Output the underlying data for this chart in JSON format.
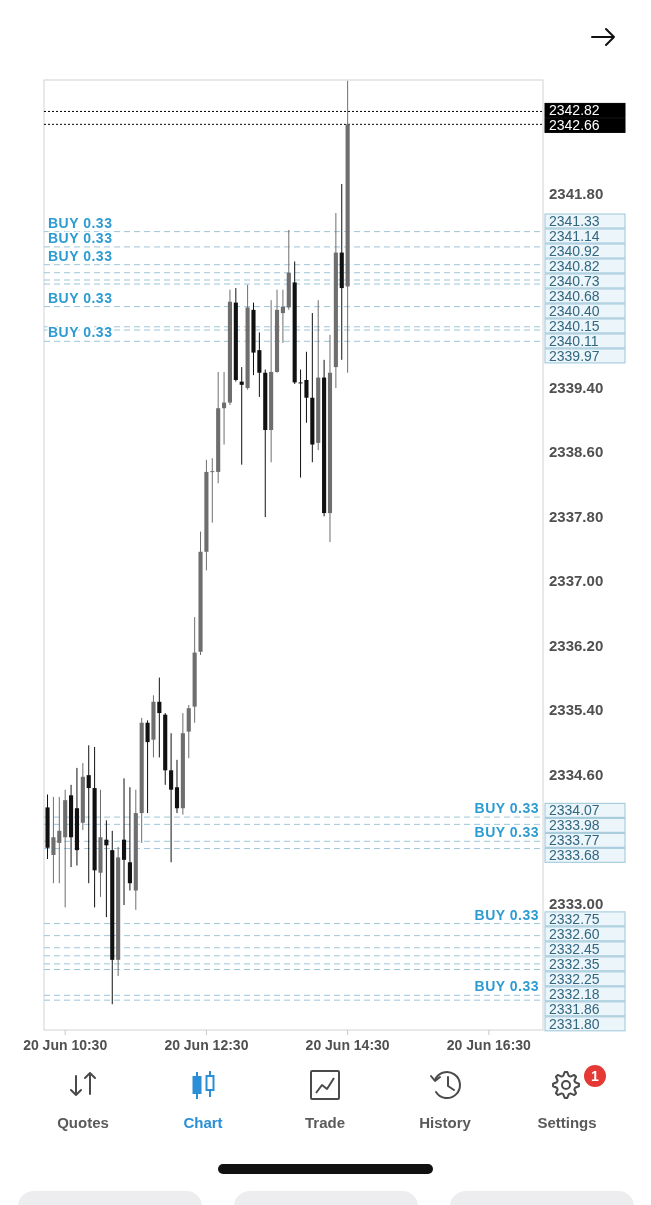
{
  "chart_data": {
    "type": "candlestick",
    "x": [
      "--06-20T10:15",
      "--06-20T10:20",
      "--06-20T10:25",
      "--06-20T10:30",
      "--06-20T10:35",
      "--06-20T10:40",
      "--06-20T10:45",
      "--06-20T10:50",
      "--06-20T10:55",
      "--06-20T11:00",
      "--06-20T11:05",
      "--06-20T11:10",
      "--06-20T11:15",
      "--06-20T11:20",
      "--06-20T11:25",
      "--06-20T11:30",
      "--06-20T11:35",
      "--06-20T11:40",
      "--06-20T11:45",
      "--06-20T11:50",
      "--06-20T11:55",
      "--06-20T12:00",
      "--06-20T12:05",
      "--06-20T12:10",
      "--06-20T12:15",
      "--06-20T12:20",
      "--06-20T12:25",
      "--06-20T12:30",
      "--06-20T12:35",
      "--06-20T12:40",
      "--06-20T12:45",
      "--06-20T12:50",
      "--06-20T12:55",
      "--06-20T13:00",
      "--06-20T13:05",
      "--06-20T13:10",
      "--06-20T13:15",
      "--06-20T13:20",
      "--06-20T13:25",
      "--06-20T13:30",
      "--06-20T13:35",
      "--06-20T13:40",
      "--06-20T13:45",
      "--06-20T13:50",
      "--06-20T13:55",
      "--06-20T14:00",
      "--06-20T14:05",
      "--06-20T14:10",
      "--06-20T14:15",
      "--06-20T14:20",
      "--06-20T14:25",
      "--06-20T14:30"
    ],
    "ohlc": [
      [
        2334.19,
        2334.35,
        2333.55,
        2333.69
      ],
      [
        2333.6,
        2334.32,
        2333.25,
        2333.82
      ],
      [
        2333.75,
        2334.32,
        2333.25,
        2333.9
      ],
      [
        2333.82,
        2334.41,
        2332.95,
        2334.28
      ],
      [
        2334.34,
        2334.47,
        2333.45,
        2333.82
      ],
      [
        2334.18,
        2334.68,
        2333.47,
        2333.66
      ],
      [
        2334,
        2334.74,
        2333.91,
        2334.57
      ],
      [
        2334.59,
        2334.96,
        2333.25,
        2334.43
      ],
      [
        2334.43,
        2334.94,
        2332.95,
        2333.41
      ],
      [
        2333.38,
        2334.41,
        2333.08,
        2333.82
      ],
      [
        2333.79,
        2334.03,
        2332.83,
        2333.72
      ],
      [
        2333.66,
        2333.9,
        2331.75,
        2332.3
      ],
      [
        2332.3,
        2333.7,
        2332.1,
        2333.57
      ],
      [
        2333.79,
        2334.55,
        2332.98,
        2333.54
      ],
      [
        2333.51,
        2334.44,
        2333.16,
        2333.25
      ],
      [
        2333.16,
        2334.41,
        2332.92,
        2334.12
      ],
      [
        2334.12,
        2335.3,
        2333.75,
        2335.24
      ],
      [
        2335.24,
        2335.27,
        2334.12,
        2335
      ],
      [
        2335.03,
        2335.58,
        2334.81,
        2335.5
      ],
      [
        2335.5,
        2335.8,
        2334.81,
        2335.36
      ],
      [
        2335.34,
        2335.36,
        2334.47,
        2334.65
      ],
      [
        2334.65,
        2335.11,
        2333.51,
        2334.41
      ],
      [
        2334.44,
        2334.78,
        2334.12,
        2334.18
      ],
      [
        2334.18,
        2335.36,
        2334.1,
        2335.11
      ],
      [
        2335.13,
        2335.46,
        2334.8,
        2335.42
      ],
      [
        2335.44,
        2336.55,
        2335.24,
        2336.11
      ],
      [
        2336.12,
        2337.61,
        2336.08,
        2337.36
      ],
      [
        2337.36,
        2338.5,
        2337.13,
        2338.35
      ],
      [
        2338.35,
        2338.52,
        2337.72,
        2338.36
      ],
      [
        2338.35,
        2339.59,
        2338.21,
        2339.14
      ],
      [
        2339.14,
        2339.59,
        2338.69,
        2339.21
      ],
      [
        2339.21,
        2340.61,
        2339.18,
        2340.46
      ],
      [
        2340.45,
        2340.63,
        2339.47,
        2339.49
      ],
      [
        2339.47,
        2339.65,
        2338.44,
        2339.43
      ],
      [
        2339.39,
        2340.67,
        2339.37,
        2340.39
      ],
      [
        2340.36,
        2340.45,
        2339.55,
        2339.83
      ],
      [
        2339.86,
        2340.08,
        2339.28,
        2339.58
      ],
      [
        2339.58,
        2339.62,
        2337.79,
        2338.87
      ],
      [
        2338.87,
        2340.48,
        2338.47,
        2339.59
      ],
      [
        2339.59,
        2340.61,
        2339.58,
        2340.36
      ],
      [
        2340.32,
        2340.61,
        2339.95,
        2340.4
      ],
      [
        2340.39,
        2341.35,
        2340.36,
        2340.82
      ],
      [
        2340.7,
        2340.96,
        2339.44,
        2339.46
      ],
      [
        2339.46,
        2339.62,
        2338.28,
        2339.45
      ],
      [
        2339.49,
        2339.84,
        2338.96,
        2339.27
      ],
      [
        2339.27,
        2340.32,
        2338.47,
        2338.69
      ],
      [
        2338.71,
        2340.48,
        2338.62,
        2339.52
      ],
      [
        2339.52,
        2339.74,
        2337.8,
        2337.84
      ],
      [
        2337.84,
        2340.05,
        2337.48,
        2339.58
      ],
      [
        2339.65,
        2341.56,
        2339.39,
        2341.07
      ],
      [
        2341.07,
        2341.92,
        2339.74,
        2340.63
      ],
      [
        2340.65,
        2343.2,
        2339.58,
        2342.66
      ]
    ],
    "colors": [
      "#111111",
      "#6e6e6e",
      "#6e6e6e",
      "#6e6e6e",
      "#111111",
      "#111111",
      "#6e6e6e",
      "#111111",
      "#111111",
      "#6e6e6e",
      "#111111",
      "#111111",
      "#6e6e6e",
      "#111111",
      "#111111",
      "#6e6e6e",
      "#6e6e6e",
      "#111111",
      "#6e6e6e",
      "#111111",
      "#111111",
      "#111111",
      "#111111",
      "#6e6e6e",
      "#6e6e6e",
      "#6e6e6e",
      "#6e6e6e",
      "#6e6e6e",
      "#6e6e6e",
      "#6e6e6e",
      "#6e6e6e",
      "#6e6e6e",
      "#111111",
      "#111111",
      "#6e6e6e",
      "#111111",
      "#111111",
      "#111111",
      "#6e6e6e",
      "#6e6e6e",
      "#6e6e6e",
      "#6e6e6e",
      "#111111",
      "#111111",
      "#111111",
      "#111111",
      "#6e6e6e",
      "#111111",
      "#6e6e6e",
      "#6e6e6e",
      "#111111",
      "#6e6e6e"
    ],
    "xlim": [
      "--06-20T10:12",
      "--06-20T17:16"
    ],
    "xticks": [
      {
        "value": "--06-20T10:30",
        "label": "20 Jun 10:30"
      },
      {
        "value": "--06-20T12:30",
        "label": "20 Jun 12:30"
      },
      {
        "value": "--06-20T14:30",
        "label": "20 Jun 14:30"
      },
      {
        "value": "--06-20T16:30",
        "label": "20 Jun 16:30"
      }
    ],
    "ylim": [
      2331.43,
      2343.21
    ],
    "yticks": [
      {
        "value": 2341.8,
        "label": "2341.80"
      },
      {
        "value": 2339.4,
        "label": "2339.40"
      },
      {
        "value": 2338.6,
        "label": "2338.60"
      },
      {
        "value": 2337.8,
        "label": "2337.80"
      },
      {
        "value": 2337,
        "label": "2337.00"
      },
      {
        "value": 2336.2,
        "label": "2336.20"
      },
      {
        "value": 2335.4,
        "label": "2335.40"
      },
      {
        "value": 2334.6,
        "label": "2334.60"
      },
      {
        "value": 2333,
        "label": "2333.00"
      }
    ],
    "ref_lines": [
      {
        "axis": "y",
        "value": 2342.82,
        "label": "2342.82",
        "color": "#000000",
        "line_style": "dotted"
      },
      {
        "axis": "y",
        "value": 2342.66,
        "label": "2342.66",
        "color": "#000000",
        "line_style": "dotted"
      },
      {
        "axis": "y",
        "value": 2341.33,
        "label": "2341.33",
        "color": "#9cc5d9",
        "line_style": "dashed"
      },
      {
        "axis": "y",
        "value": 2341.14,
        "label": "2341.14",
        "color": "#9cc5d9",
        "line_style": "dashed"
      },
      {
        "axis": "y",
        "value": 2340.92,
        "label": "2340.92",
        "color": "#9cc5d9",
        "line_style": "dashed"
      },
      {
        "axis": "y",
        "value": 2340.82,
        "label": "2340.82",
        "color": "#9cc5d9",
        "line_style": "dashed"
      },
      {
        "axis": "y",
        "value": 2340.73,
        "label": "2340.73",
        "color": "#9cc5d9",
        "line_style": "dashed"
      },
      {
        "axis": "y",
        "value": 2340.68,
        "label": "2340.68",
        "color": "#9cc5d9",
        "line_style": "dashed"
      },
      {
        "axis": "y",
        "value": 2340.4,
        "label": "2340.40",
        "color": "#9cc5d9",
        "line_style": "dashed"
      },
      {
        "axis": "y",
        "value": 2340.15,
        "label": "2340.15",
        "color": "#9cc5d9",
        "line_style": "dashed"
      },
      {
        "axis": "y",
        "value": 2340.11,
        "label": "2340.11",
        "color": "#9cc5d9",
        "line_style": "dashed"
      },
      {
        "axis": "y",
        "value": 2339.97,
        "label": "2339.97",
        "color": "#9cc5d9",
        "line_style": "dashed"
      },
      {
        "axis": "y",
        "value": 2334.07,
        "label": "2334.07",
        "color": "#9cc5d9",
        "line_style": "dashed"
      },
      {
        "axis": "y",
        "value": 2333.98,
        "label": "2333.98",
        "color": "#9cc5d9",
        "line_style": "dashed"
      },
      {
        "axis": "y",
        "value": 2333.77,
        "label": "2333.77",
        "color": "#9cc5d9",
        "line_style": "dashed"
      },
      {
        "axis": "y",
        "value": 2333.68,
        "label": "2333.68",
        "color": "#9cc5d9",
        "line_style": "dashed"
      },
      {
        "axis": "y",
        "value": 2332.75,
        "label": "2332.75",
        "color": "#9cc5d9",
        "line_style": "dashed"
      },
      {
        "axis": "y",
        "value": 2332.6,
        "label": "2332.60",
        "color": "#9cc5d9",
        "line_style": "dashed"
      },
      {
        "axis": "y",
        "value": 2332.45,
        "label": "2332.45",
        "color": "#9cc5d9",
        "line_style": "dashed"
      },
      {
        "axis": "y",
        "value": 2332.35,
        "label": "2332.35",
        "color": "#9cc5d9",
        "line_style": "dashed"
      },
      {
        "axis": "y",
        "value": 2332.25,
        "label": "2332.25",
        "color": "#9cc5d9",
        "line_style": "dashed"
      },
      {
        "axis": "y",
        "value": 2332.18,
        "label": "2332.18",
        "color": "#9cc5d9",
        "line_style": "dashed"
      },
      {
        "axis": "y",
        "value": 2331.86,
        "label": "2331.86",
        "color": "#9cc5d9",
        "line_style": "dashed"
      },
      {
        "axis": "y",
        "value": 2331.8,
        "label": "2331.80",
        "color": "#9cc5d9",
        "line_style": "dashed"
      }
    ],
    "annotations": [
      {
        "text": "BUY 0.33",
        "y": 2341.33
      },
      {
        "text": "BUY 0.33",
        "y": 2341.14
      },
      {
        "text": "BUY 0.33",
        "y": 2340.92
      },
      {
        "text": "BUY 0.33",
        "y": 2340.4
      },
      {
        "text": "BUY 0.33",
        "y": 2339.97
      },
      {
        "text": "BUY 0.33",
        "y": 2334.07
      },
      {
        "text": "BUY 0.33",
        "y": 2333.77
      },
      {
        "text": "BUY 0.33",
        "y": 2332.75
      },
      {
        "text": "BUY 0.33",
        "y": 2331.86
      },
      "Quotes",
      "Chart",
      "Trade",
      "History",
      "Settings",
      "1"
    ]
  }
}
